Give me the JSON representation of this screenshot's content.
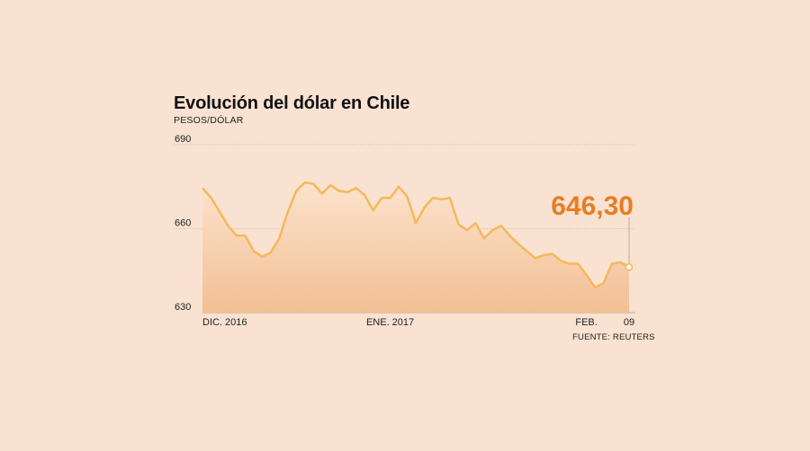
{
  "chart_data": {
    "type": "area",
    "title": "Evolución del dólar en Chile",
    "ylabel": "PESOS/DÓLAR",
    "source": "FUENTE: REUTERS",
    "ylim": [
      630,
      690
    ],
    "yticks": [
      "690",
      "660",
      "630"
    ],
    "ytick_values": [
      690,
      660,
      630
    ],
    "x_labels": [
      {
        "label": "DIC. 2016",
        "index": 0
      },
      {
        "label": "ENE. 2017",
        "index": 22
      },
      {
        "label": "FEB.",
        "index": 45
      },
      {
        "label": "09",
        "index": 50
      }
    ],
    "grid": true,
    "callout": {
      "label": "646,30",
      "index": 50,
      "value": 646.3
    },
    "series": [
      {
        "values": [
          674.5,
          671,
          666,
          661,
          657.5,
          657.5,
          652,
          650,
          651.5,
          656.5,
          666,
          673.5,
          676.5,
          676,
          672.5,
          675.5,
          673.5,
          673,
          674.5,
          672,
          666.5,
          671,
          671,
          675,
          671.5,
          662,
          667.5,
          671,
          670.5,
          671,
          661.5,
          659.5,
          662,
          656.5,
          659.5,
          661,
          657.5,
          654.5,
          652,
          649.5,
          650.5,
          651,
          648.5,
          647.5,
          647.5,
          643.5,
          639,
          640.5,
          647.5,
          648,
          646.3
        ]
      }
    ]
  }
}
